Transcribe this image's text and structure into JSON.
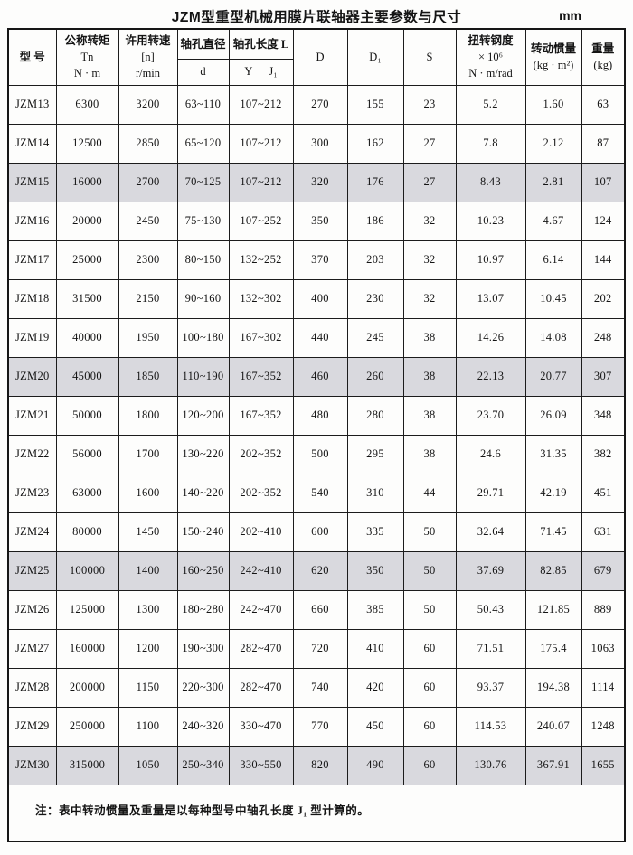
{
  "page": {
    "title": "JZM型重型机械用膜片联轴器主要参数与尺寸",
    "unit": "mm"
  },
  "table": {
    "header": {
      "model": "型  号",
      "torque_l1": "公称转矩",
      "torque_l2": "Tn",
      "torque_l3": "N · m",
      "speed_l1": "许用转速",
      "speed_l2": "[n]",
      "speed_l3": "r/min",
      "bore_d_top": "轴孔直径",
      "bore_d_bottom": "d",
      "bore_len_top": "轴孔长度 L",
      "bore_len_y": "Y",
      "bore_len_j1": "J₁",
      "D": "D",
      "D1": "D₁",
      "S": "S",
      "stiff_l1": "扭转钢度",
      "stiff_l2": "× 10⁶",
      "stiff_l3": "N · m/rad",
      "inertia_l1": "转动惯量",
      "inertia_l2": "(kg · m²)",
      "weight_l1": "重量",
      "weight_l2": "(kg)"
    },
    "rows": [
      {
        "model": "JZM13",
        "torque": "6300",
        "speed": "3200",
        "bore_d": "63~110",
        "bore_len": "107~212",
        "D": "270",
        "D1": "155",
        "S": "23",
        "stiffness": "5.2",
        "inertia": "1.60",
        "weight": "63",
        "shaded": false
      },
      {
        "model": "JZM14",
        "torque": "12500",
        "speed": "2850",
        "bore_d": "65~120",
        "bore_len": "107~212",
        "D": "300",
        "D1": "162",
        "S": "27",
        "stiffness": "7.8",
        "inertia": "2.12",
        "weight": "87",
        "shaded": false
      },
      {
        "model": "JZM15",
        "torque": "16000",
        "speed": "2700",
        "bore_d": "70~125",
        "bore_len": "107~212",
        "D": "320",
        "D1": "176",
        "S": "27",
        "stiffness": "8.43",
        "inertia": "2.81",
        "weight": "107",
        "shaded": true
      },
      {
        "model": "JZM16",
        "torque": "20000",
        "speed": "2450",
        "bore_d": "75~130",
        "bore_len": "107~252",
        "D": "350",
        "D1": "186",
        "S": "32",
        "stiffness": "10.23",
        "inertia": "4.67",
        "weight": "124",
        "shaded": false
      },
      {
        "model": "JZM17",
        "torque": "25000",
        "speed": "2300",
        "bore_d": "80~150",
        "bore_len": "132~252",
        "D": "370",
        "D1": "203",
        "S": "32",
        "stiffness": "10.97",
        "inertia": "6.14",
        "weight": "144",
        "shaded": false
      },
      {
        "model": "JZM18",
        "torque": "31500",
        "speed": "2150",
        "bore_d": "90~160",
        "bore_len": "132~302",
        "D": "400",
        "D1": "230",
        "S": "32",
        "stiffness": "13.07",
        "inertia": "10.45",
        "weight": "202",
        "shaded": false
      },
      {
        "model": "JZM19",
        "torque": "40000",
        "speed": "1950",
        "bore_d": "100~180",
        "bore_len": "167~302",
        "D": "440",
        "D1": "245",
        "S": "38",
        "stiffness": "14.26",
        "inertia": "14.08",
        "weight": "248",
        "shaded": false
      },
      {
        "model": "JZM20",
        "torque": "45000",
        "speed": "1850",
        "bore_d": "110~190",
        "bore_len": "167~352",
        "D": "460",
        "D1": "260",
        "S": "38",
        "stiffness": "22.13",
        "inertia": "20.77",
        "weight": "307",
        "shaded": true
      },
      {
        "model": "JZM21",
        "torque": "50000",
        "speed": "1800",
        "bore_d": "120~200",
        "bore_len": "167~352",
        "D": "480",
        "D1": "280",
        "S": "38",
        "stiffness": "23.70",
        "inertia": "26.09",
        "weight": "348",
        "shaded": false
      },
      {
        "model": "JZM22",
        "torque": "56000",
        "speed": "1700",
        "bore_d": "130~220",
        "bore_len": "202~352",
        "D": "500",
        "D1": "295",
        "S": "38",
        "stiffness": "24.6",
        "inertia": "31.35",
        "weight": "382",
        "shaded": false
      },
      {
        "model": "JZM23",
        "torque": "63000",
        "speed": "1600",
        "bore_d": "140~220",
        "bore_len": "202~352",
        "D": "540",
        "D1": "310",
        "S": "44",
        "stiffness": "29.71",
        "inertia": "42.19",
        "weight": "451",
        "shaded": false
      },
      {
        "model": "JZM24",
        "torque": "80000",
        "speed": "1450",
        "bore_d": "150~240",
        "bore_len": "202~410",
        "D": "600",
        "D1": "335",
        "S": "50",
        "stiffness": "32.64",
        "inertia": "71.45",
        "weight": "631",
        "shaded": false
      },
      {
        "model": "JZM25",
        "torque": "100000",
        "speed": "1400",
        "bore_d": "160~250",
        "bore_len": "242~410",
        "D": "620",
        "D1": "350",
        "S": "50",
        "stiffness": "37.69",
        "inertia": "82.85",
        "weight": "679",
        "shaded": true
      },
      {
        "model": "JZM26",
        "torque": "125000",
        "speed": "1300",
        "bore_d": "180~280",
        "bore_len": "242~470",
        "D": "660",
        "D1": "385",
        "S": "50",
        "stiffness": "50.43",
        "inertia": "121.85",
        "weight": "889",
        "shaded": false
      },
      {
        "model": "JZM27",
        "torque": "160000",
        "speed": "1200",
        "bore_d": "190~300",
        "bore_len": "282~470",
        "D": "720",
        "D1": "410",
        "S": "60",
        "stiffness": "71.51",
        "inertia": "175.4",
        "weight": "1063",
        "shaded": false
      },
      {
        "model": "JZM28",
        "torque": "200000",
        "speed": "1150",
        "bore_d": "220~300",
        "bore_len": "282~470",
        "D": "740",
        "D1": "420",
        "S": "60",
        "stiffness": "93.37",
        "inertia": "194.38",
        "weight": "1114",
        "shaded": false
      },
      {
        "model": "JZM29",
        "torque": "250000",
        "speed": "1100",
        "bore_d": "240~320",
        "bore_len": "330~470",
        "D": "770",
        "D1": "450",
        "S": "60",
        "stiffness": "114.53",
        "inertia": "240.07",
        "weight": "1248",
        "shaded": false
      },
      {
        "model": "JZM30",
        "torque": "315000",
        "speed": "1050",
        "bore_d": "250~340",
        "bore_len": "330~550",
        "D": "820",
        "D1": "490",
        "S": "60",
        "stiffness": "130.76",
        "inertia": "367.91",
        "weight": "1655",
        "shaded": true
      }
    ],
    "note": "注：表中转动惯量及重量是以每种型号中轴孔长度 J₁ 型计算的。",
    "shaded_row_color": "#d9d9de",
    "border_color": "#1c1c1c"
  }
}
